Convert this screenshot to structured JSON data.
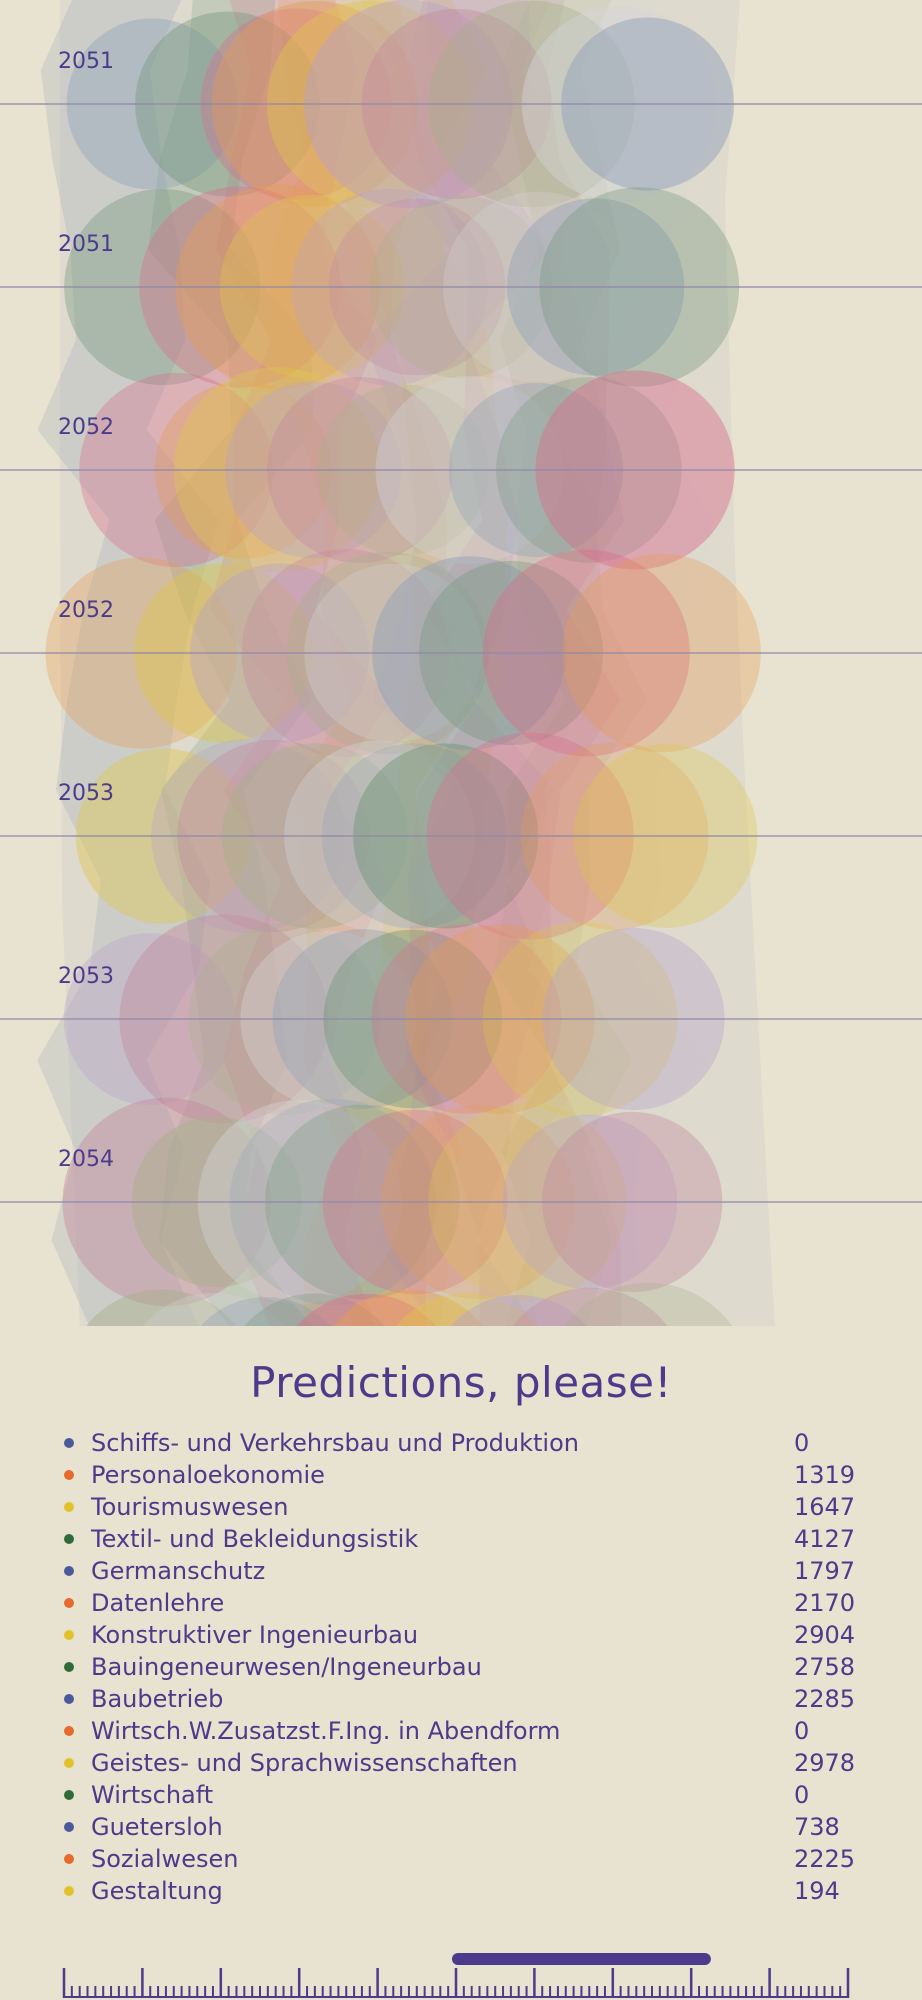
{
  "colors": {
    "background": "#e8e2d0",
    "accent": "#4b3b8a",
    "grid": "#8f88a8",
    "dot_cycle": [
      "#4a5a9b",
      "#e66a2c",
      "#e3c12a",
      "#2f6b3a"
    ],
    "blob_palette": [
      "#8fa0b8",
      "#6f9478",
      "#d96c8c",
      "#e59a56",
      "#dfc64a",
      "#b7a2c9",
      "#c48a9e",
      "#a8b08a",
      "#d4d4d6"
    ]
  },
  "chart_data": {
    "type": "area",
    "description_hidden": false,
    "y_axis_labels": [
      "2051",
      "2051",
      "2052",
      "2052",
      "2053",
      "2053",
      "2054"
    ],
    "legend": [
      {
        "name": "Schiffs- und Verkehrsbau und Produktion",
        "value": 0
      },
      {
        "name": "Personaloekonomie",
        "value": 1319
      },
      {
        "name": "Tourismuswesen",
        "value": 1647
      },
      {
        "name": "Textil- und Bekleidungsistik",
        "value": 4127
      },
      {
        "name": "Germanschutz",
        "value": 1797
      },
      {
        "name": "Datenlehre",
        "value": 2170
      },
      {
        "name": "Konstruktiver Ingenieurbau",
        "value": 2904
      },
      {
        "name": "Bauingeneurwesen/Ingeneurbau",
        "value": 2758
      },
      {
        "name": "Baubetrieb",
        "value": 2285
      },
      {
        "name": "Wirtsch.W.Zusatzst.F.Ing. in Abendform",
        "value": 0
      },
      {
        "name": "Geistes- und Sprachwissenschaften",
        "value": 2978
      },
      {
        "name": "Wirtschaft",
        "value": 0
      },
      {
        "name": "Guetersloh",
        "value": 738
      },
      {
        "name": "Sozialwesen",
        "value": 2225
      },
      {
        "name": "Gestaltung",
        "value": 194
      }
    ],
    "scrubber": {
      "ticks_major": 11,
      "ticks_minor_per_major": 9,
      "selection_start": 0.5,
      "selection_end": 0.82
    }
  },
  "page": {
    "title": "Predictions, please!"
  }
}
